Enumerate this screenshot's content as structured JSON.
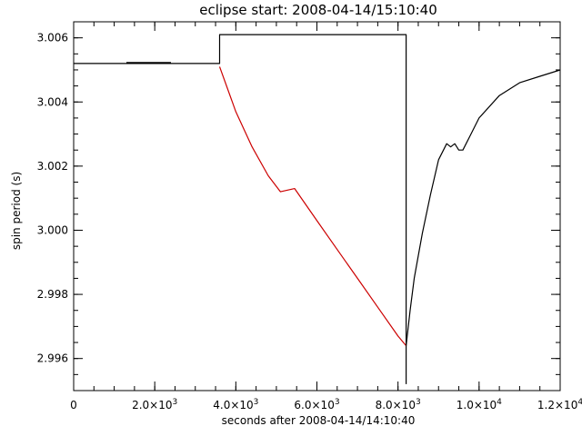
{
  "chart_data": {
    "type": "line",
    "title": "eclipse start: 2008-04-14/15:10:40",
    "xlabel": "seconds after 2008-04-14/14:10:40",
    "ylabel": "spin period (s)",
    "xlim": [
      0,
      12000
    ],
    "ylim": [
      2.995,
      3.0065
    ],
    "grid": false,
    "legend": "none",
    "x_ticks": [
      {
        "value": 0,
        "label": "0"
      },
      {
        "value": 2000,
        "label": "2.0×10",
        "exp": "3"
      },
      {
        "value": 4000,
        "label": "4.0×10",
        "exp": "3"
      },
      {
        "value": 6000,
        "label": "6.0×10",
        "exp": "3"
      },
      {
        "value": 8000,
        "label": "8.0×10",
        "exp": "3"
      },
      {
        "value": 10000,
        "label": "1.0×10",
        "exp": "4"
      },
      {
        "value": 12000,
        "label": "1.2×10",
        "exp": "4"
      }
    ],
    "y_ticks": [
      {
        "value": 2.996,
        "label": "2.996"
      },
      {
        "value": 2.998,
        "label": "2.998"
      },
      {
        "value": 3.0,
        "label": "3.000"
      },
      {
        "value": 3.002,
        "label": "3.002"
      },
      {
        "value": 3.004,
        "label": "3.004"
      },
      {
        "value": 3.006,
        "label": "3.006"
      }
    ],
    "x_minor_step": 500,
    "y_minor_step": 0.0005,
    "series": [
      {
        "color": "#000000",
        "x": [
          0,
          1300,
          2400,
          3600,
          3600,
          8200,
          8200
        ],
        "y": [
          3.0052,
          3.0052,
          3.0052,
          3.0052,
          3.0061,
          3.0061,
          2.9952
        ]
      },
      {
        "color": "#000000",
        "x": [
          1300,
          2400
        ],
        "y": [
          3.00522,
          3.00522
        ]
      },
      {
        "color": "#cc0000",
        "x": [
          3600,
          4000,
          4400,
          4800,
          5100,
          5450,
          6000,
          6500,
          7000,
          7500,
          8000,
          8200
        ],
        "y": [
          3.0051,
          3.0037,
          3.0026,
          3.0017,
          3.0012,
          3.0013,
          3.0003,
          2.9994,
          2.9985,
          2.9976,
          2.9967,
          2.9964
        ]
      },
      {
        "color": "#000000",
        "x": [
          8200,
          8300,
          8400,
          8600,
          8800,
          9000,
          9200,
          9300,
          9400,
          9500,
          9600,
          9800,
          10000,
          10500,
          11000,
          11500,
          12000
        ],
        "y": [
          2.9964,
          2.9975,
          2.9985,
          2.9999,
          3.0011,
          3.0022,
          3.0027,
          3.0026,
          3.0027,
          3.0025,
          3.0025,
          3.003,
          3.0035,
          3.0042,
          3.0046,
          3.0048,
          3.005
        ]
      }
    ]
  }
}
